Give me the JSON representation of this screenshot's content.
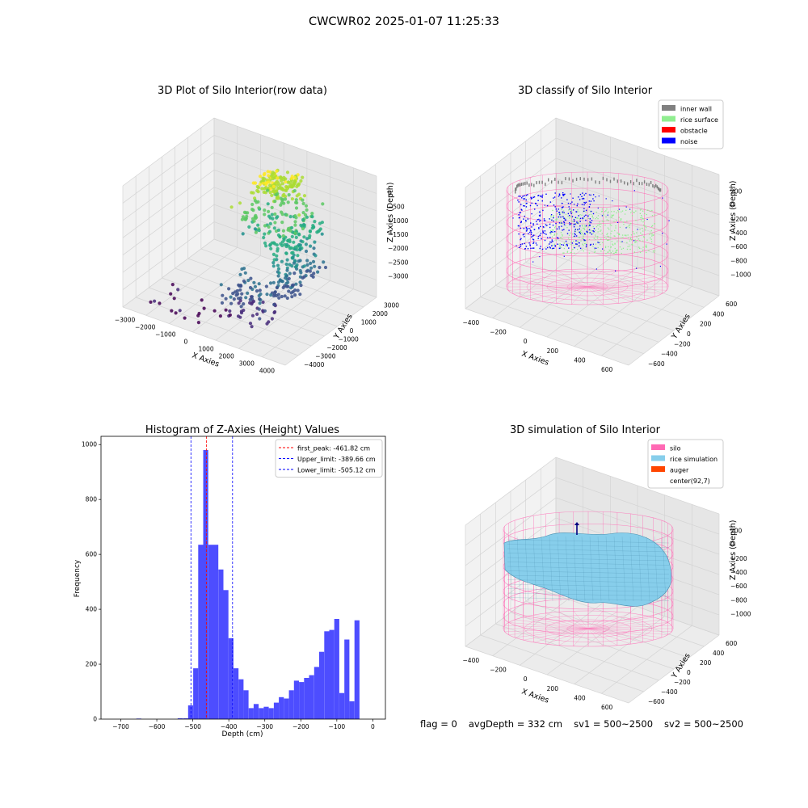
{
  "figure_title": "CWCWR02 2025-01-07 11:25:33",
  "footer": {
    "flag": "flag = 0",
    "avg_depth": "avgDepth = 332 cm",
    "sv1": "sv1 = 500~2500",
    "sv2": "sv2 = 500~2500"
  },
  "colors": {
    "inner_wall": "#808080",
    "rice_surface": "#90ee90",
    "obstacle": "#ff0000",
    "noise": "#0000ff",
    "silo": "#ff69b4",
    "rice_simulation": "#87ceeb",
    "auger": "#ff4500",
    "histogram_bar": "#4d4dff",
    "peak_line": "#ff0000",
    "limit_line": "#0000ff"
  },
  "chart_data": [
    {
      "type": "scatter",
      "title": "3D Plot of Silo Interior(row data)",
      "xlabel": "X Axies",
      "ylabel": "Y Axies",
      "zlabel": "Z Axies (Depth)",
      "x_ticks": [
        "−3000",
        "−2000",
        "−1000",
        "0",
        "1000",
        "2000",
        "3000",
        "4000"
      ],
      "y_ticks": [
        "−4000",
        "−3000",
        "−2000",
        "−1000",
        "0",
        "1000",
        "2000",
        "3000"
      ],
      "z_ticks": [
        "−3000",
        "−2500",
        "−2000",
        "−1500",
        "−1000",
        "−500",
        "0"
      ],
      "xlim": [
        -3500,
        4500
      ],
      "ylim": [
        -4500,
        3500
      ],
      "zlim": [
        -3200,
        0
      ],
      "colormap": "viridis"
    },
    {
      "type": "scatter",
      "title": "3D classify of Silo Interior",
      "xlabel": "X Axies",
      "ylabel": "Y Axies",
      "zlabel": "Z Axies (Depth)",
      "x_ticks": [
        "−400",
        "−200",
        "0",
        "200",
        "400",
        "600"
      ],
      "y_ticks": [
        "−600",
        "−400",
        "−200",
        "0",
        "200",
        "400",
        "600"
      ],
      "z_ticks": [
        "−1000",
        "−800",
        "−600",
        "−400",
        "−200",
        "0",
        "200"
      ],
      "xlim": [
        -500,
        700
      ],
      "ylim": [
        -650,
        650
      ],
      "zlim": [
        -1000,
        250
      ],
      "legend": [
        "inner wall",
        "rice surface",
        "obstacle",
        "noise"
      ],
      "legend_position": "top-right"
    },
    {
      "type": "bar",
      "title": "Histogram of Z-Axies (Height) Values",
      "xlabel": "Depth (cm)",
      "ylabel": "Frequency",
      "xlim": [
        -755,
        35
      ],
      "ylim": [
        0,
        1030
      ],
      "x_ticks": [
        "−700",
        "−600",
        "−500",
        "−400",
        "−300",
        "−200",
        "−100",
        "0"
      ],
      "y_ticks": [
        "0",
        "200",
        "400",
        "600",
        "800",
        "1000"
      ],
      "bin_edges": [
        -527,
        -513,
        -499,
        -485,
        -471,
        -457,
        -443,
        -429,
        -415,
        -401,
        -387,
        -373,
        -359,
        -345,
        -331,
        -317,
        -303,
        -289,
        -275,
        -261,
        -247,
        -233,
        -219,
        -205,
        -191,
        -177,
        -163,
        -149,
        -135,
        -121,
        -107,
        -93,
        -79,
        -65,
        -51,
        -37,
        -23,
        -9,
        5
      ],
      "counts": [
        3,
        50,
        185,
        635,
        980,
        635,
        635,
        545,
        470,
        295,
        185,
        145,
        105,
        40,
        55,
        40,
        45,
        40,
        60,
        80,
        75,
        105,
        140,
        135,
        150,
        160,
        190,
        245,
        320,
        325,
        365,
        95,
        290,
        65,
        360,
        0,
        0,
        0
      ],
      "outliers": [
        {
          "x": -650,
          "count": 2
        },
        {
          "x": -535,
          "count": 3
        }
      ],
      "lines": [
        {
          "label": "first_peak: -461.82 cm",
          "x": -461.82,
          "color": "#ff0000"
        },
        {
          "label": "Upper_limit: -389.66 cm",
          "x": -389.66,
          "color": "#0000ff"
        },
        {
          "label": "Lower_limit: -505.12 cm",
          "x": -505.12,
          "color": "#0000ff"
        }
      ],
      "legend_position": "top-right"
    },
    {
      "type": "surface",
      "title": "3D simulation of Silo Interior",
      "xlabel": "X Axies",
      "ylabel": "Y Axies",
      "zlabel": "Z Axies (Depth)",
      "x_ticks": [
        "−400",
        "−200",
        "0",
        "200",
        "400",
        "600"
      ],
      "y_ticks": [
        "−600",
        "−400",
        "−200",
        "0",
        "200",
        "400",
        "600"
      ],
      "z_ticks": [
        "−1000",
        "−800",
        "−600",
        "−400",
        "−200",
        "0",
        "200"
      ],
      "xlim": [
        -500,
        700
      ],
      "ylim": [
        -650,
        650
      ],
      "zlim": [
        -1000,
        250
      ],
      "legend": [
        "silo",
        "rice simulation",
        "auger",
        "center(92,7)"
      ],
      "legend_position": "top-right"
    }
  ]
}
